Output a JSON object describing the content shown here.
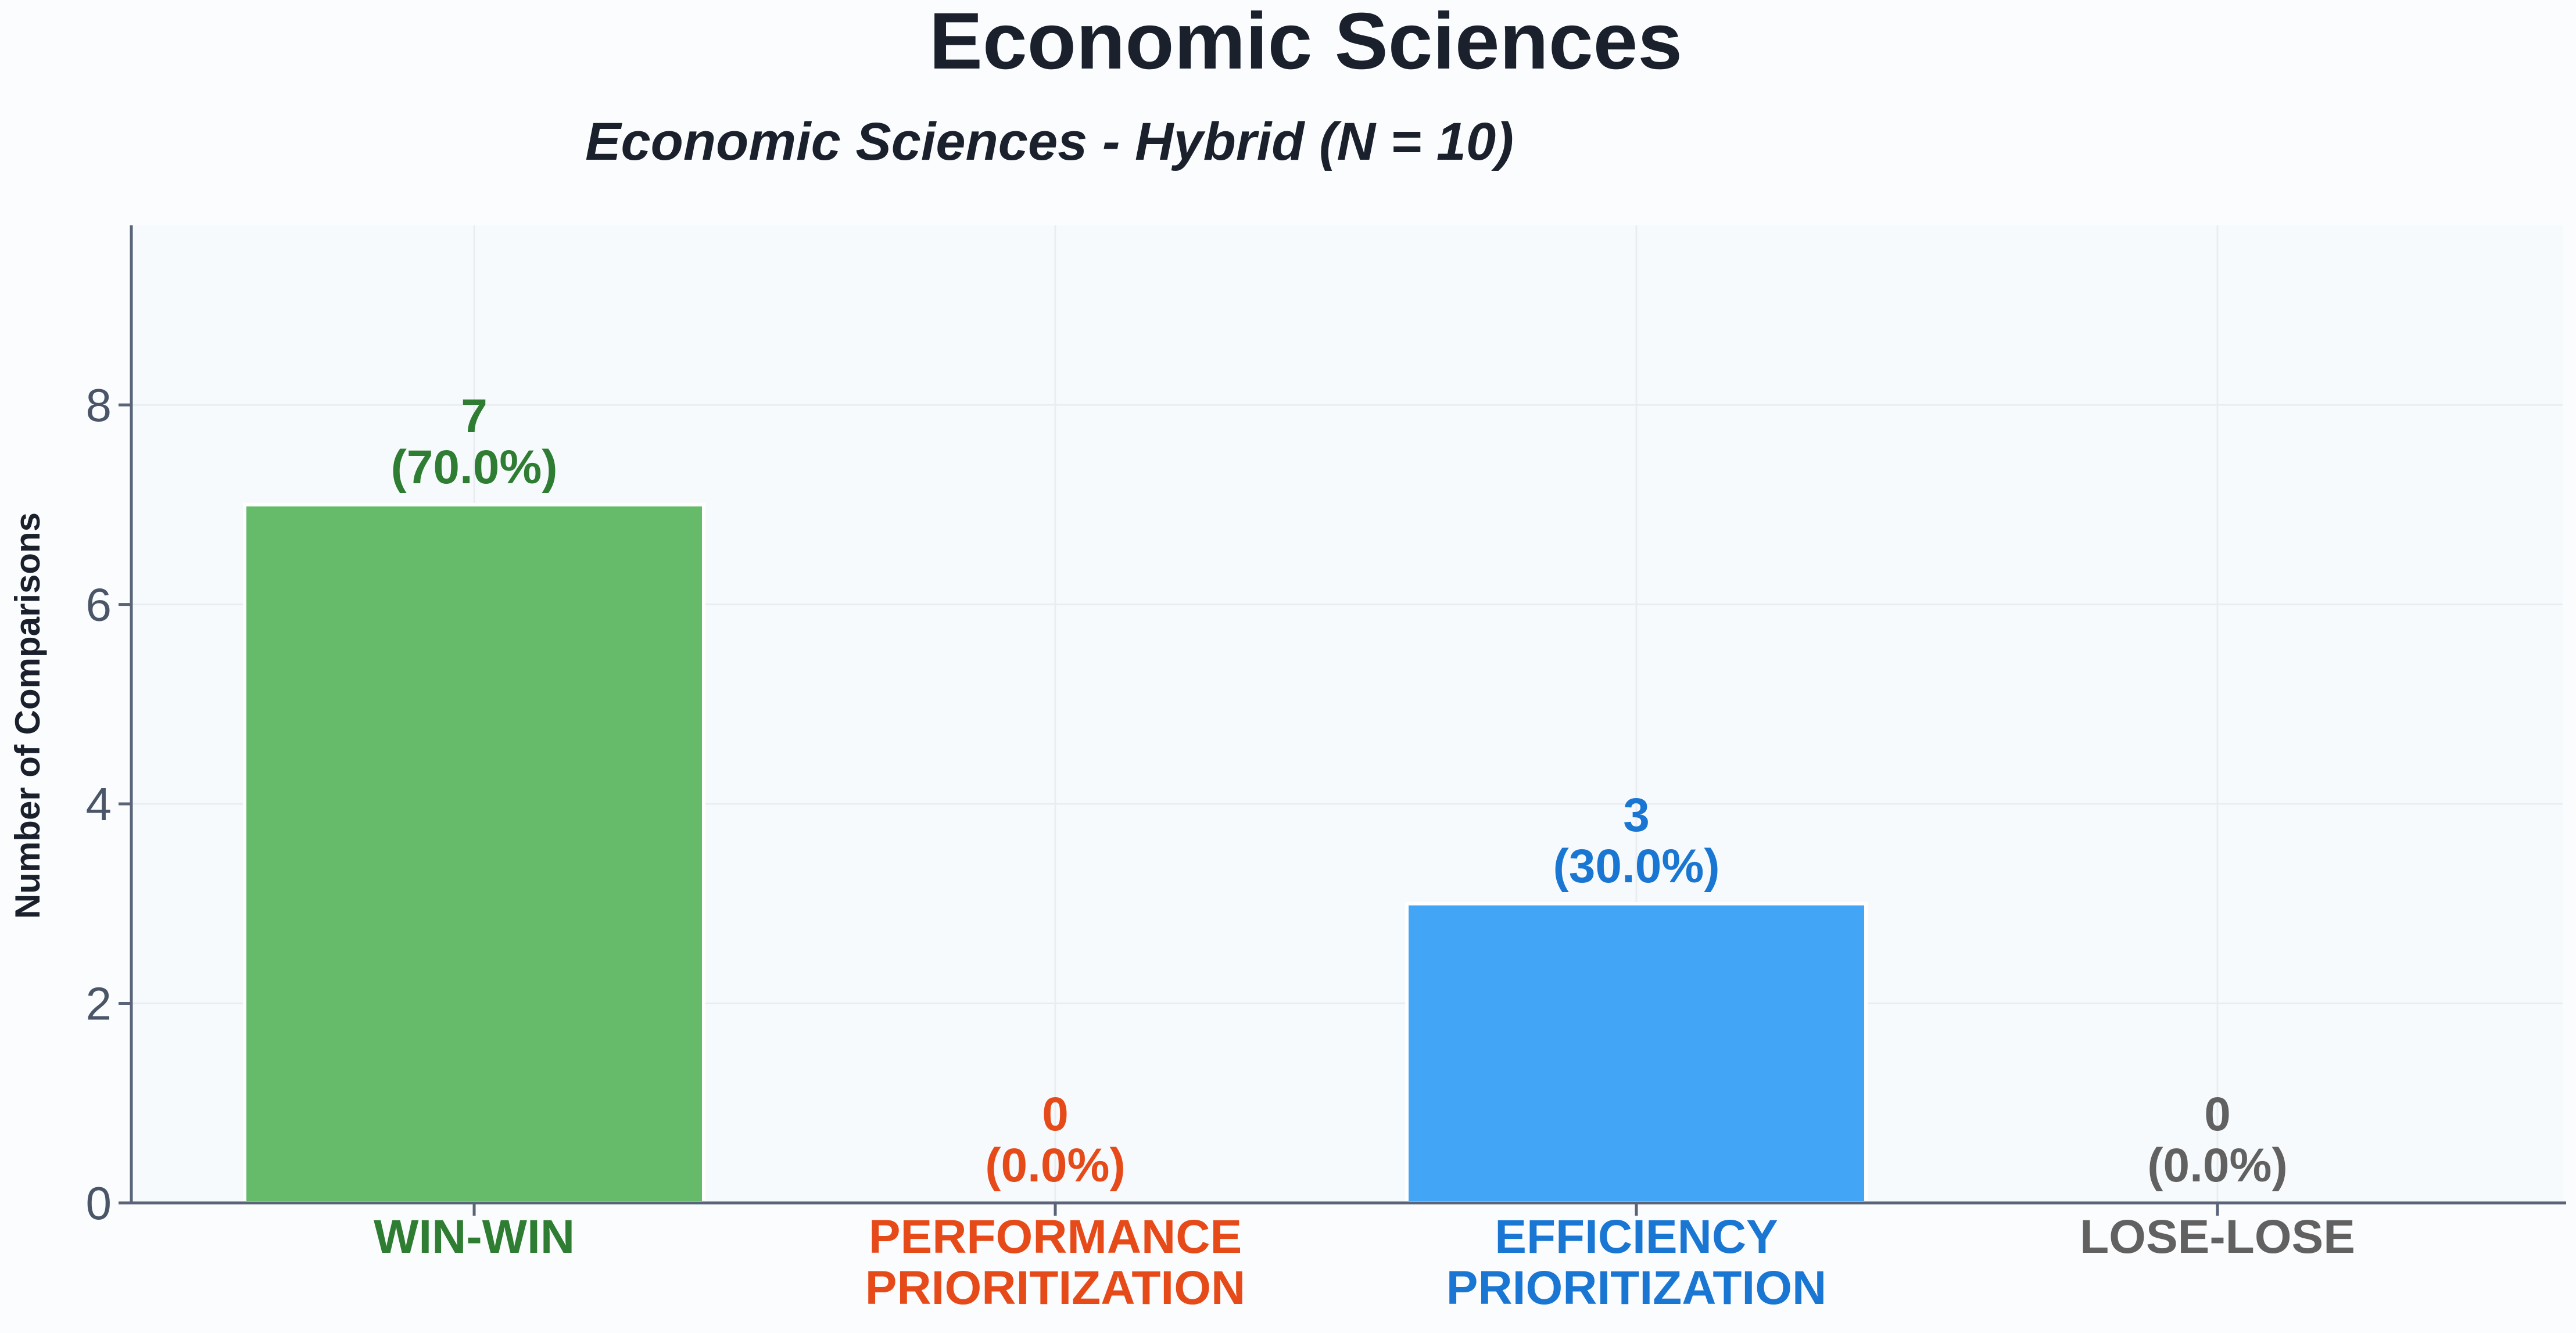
{
  "figure": {
    "title": "Economic Sciences"
  },
  "chart_data": {
    "type": "bar",
    "title": "Economic Sciences",
    "subtitle": "Economic Sciences - Hybrid (N = 10)",
    "xlabel": "",
    "ylabel": "Number of Comparisons",
    "ylim": [
      0,
      9.8
    ],
    "yticks": [
      "0",
      "2",
      "4",
      "6",
      "8"
    ],
    "grid": true,
    "categories": [
      {
        "line1": "WIN-WIN",
        "line2": ""
      },
      {
        "line1": "PERFORMANCE",
        "line2": "PRIORITIZATION"
      },
      {
        "line1": "EFFICIENCY",
        "line2": "PRIORITIZATION"
      },
      {
        "line1": "LOSE-LOSE",
        "line2": ""
      }
    ],
    "values": [
      7,
      0,
      3,
      0
    ],
    "value_labels": [
      "7",
      "0",
      "3",
      "0"
    ],
    "percent_labels": [
      "(70.0%)",
      "(0.0%)",
      "(30.0%)",
      "(0.0%)"
    ],
    "colors": {
      "bars": [
        "#66bb6a",
        "#ff7043",
        "#42a5f5",
        "#9e9e9e"
      ],
      "labels": [
        "#2e7d32",
        "#e64a19",
        "#1976d2",
        "#616161"
      ],
      "title": "#1a202c",
      "axis": "#5a6478",
      "tick_text": "#4a5568",
      "plot_bg": "#f7fafc",
      "grid": "#e8edf2"
    }
  }
}
